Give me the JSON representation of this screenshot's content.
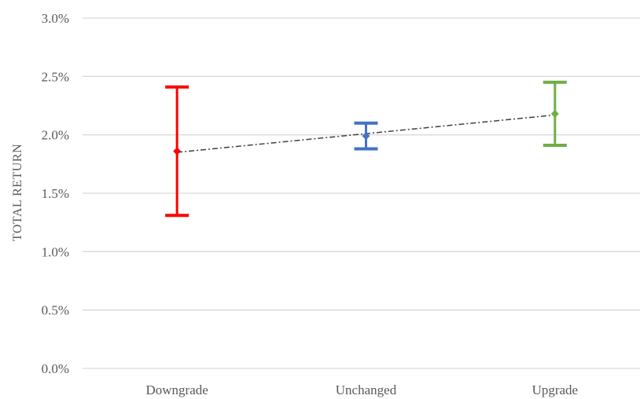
{
  "chart_data": {
    "type": "scatter",
    "title": "",
    "ylabel": "TOTAL RETURN",
    "xlabel": "",
    "ylim": [
      0,
      3.0
    ],
    "y_ticks": [
      "0.0%",
      "0.5%",
      "1.0%",
      "1.5%",
      "2.0%",
      "2.5%",
      "3.0%"
    ],
    "y_tick_values": [
      0,
      0.5,
      1.0,
      1.5,
      2.0,
      2.5,
      3.0
    ],
    "grid": true,
    "categories": [
      "Downgrade",
      "Unchanged",
      "Upgrade"
    ],
    "series": [
      {
        "values": [
          1.86,
          1.99,
          2.18
        ],
        "error_low": [
          1.31,
          1.88,
          1.91
        ],
        "error_high": [
          2.41,
          2.1,
          2.45
        ],
        "colors": [
          "#ff0000",
          "#4472c4",
          "#70ad47"
        ]
      }
    ],
    "trendline": {
      "style": "dash-dot",
      "color": "#404040",
      "start": 1.85,
      "end": 2.17
    }
  }
}
